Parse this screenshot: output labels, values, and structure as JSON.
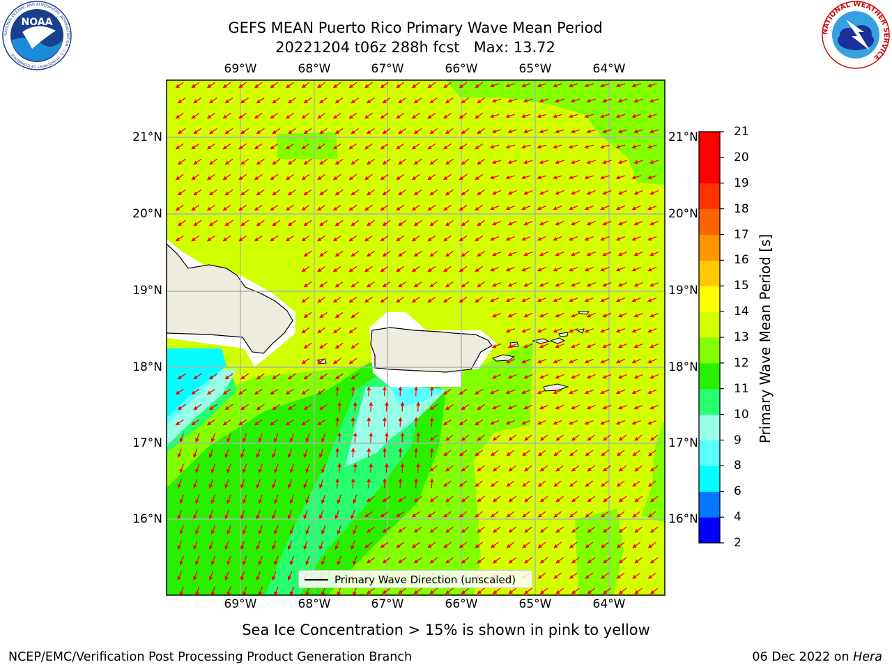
{
  "header": {
    "title_line1": "GEFS MEAN Puerto Rico Primary Wave Mean Period",
    "title_line2": "20221204 t06z 288h fcst   Max: 13.72"
  },
  "logos": {
    "noaa": {
      "text": "NOAA",
      "ring_text": "NATIONAL OCEANIC AND ATMOSPHERIC ADMINISTRATION · U.S. DEPARTMENT OF COMMERCE"
    },
    "nws": {
      "ring_text": "NATIONAL WEATHER SERVICE"
    }
  },
  "map": {
    "lon_range": [
      -70.0,
      -63.25
    ],
    "lat_range": [
      15.0,
      21.75
    ],
    "lon_ticks": [
      "69°W",
      "68°W",
      "67°W",
      "66°W",
      "65°W",
      "64°W"
    ],
    "lat_ticks": [
      "21°N",
      "20°N",
      "19°N",
      "18°N",
      "17°N",
      "16°N"
    ],
    "grid": true,
    "arrow_color": "#ff0000",
    "land_color": "#eeecdf",
    "legend": {
      "label": "Primary Wave Direction (unscaled)",
      "position": "lower-center"
    }
  },
  "colorbar": {
    "title": "Primary Wave Mean Period [s]",
    "ticks": [
      "2",
      "4",
      "6",
      "8",
      "9",
      "10",
      "11",
      "12",
      "13",
      "14",
      "15",
      "16",
      "17",
      "18",
      "19",
      "20",
      "21"
    ],
    "colors": [
      "#0000ff",
      "#0078ff",
      "#00ffff",
      "#5affff",
      "#96ffe6",
      "#28ff6e",
      "#28f000",
      "#82ff00",
      "#d2ff00",
      "#ffff00",
      "#ffc800",
      "#ff9600",
      "#ff6400",
      "#ff3200",
      "#ff0000"
    ]
  },
  "caption": "Sea Ice Concentration > 15% is shown in pink to yellow",
  "footer": {
    "left": "NCEP/EMC/Verification Post Processing Product Generation Branch",
    "right_prefix": "06 Dec 2022 on ",
    "right_host": "Hera"
  }
}
